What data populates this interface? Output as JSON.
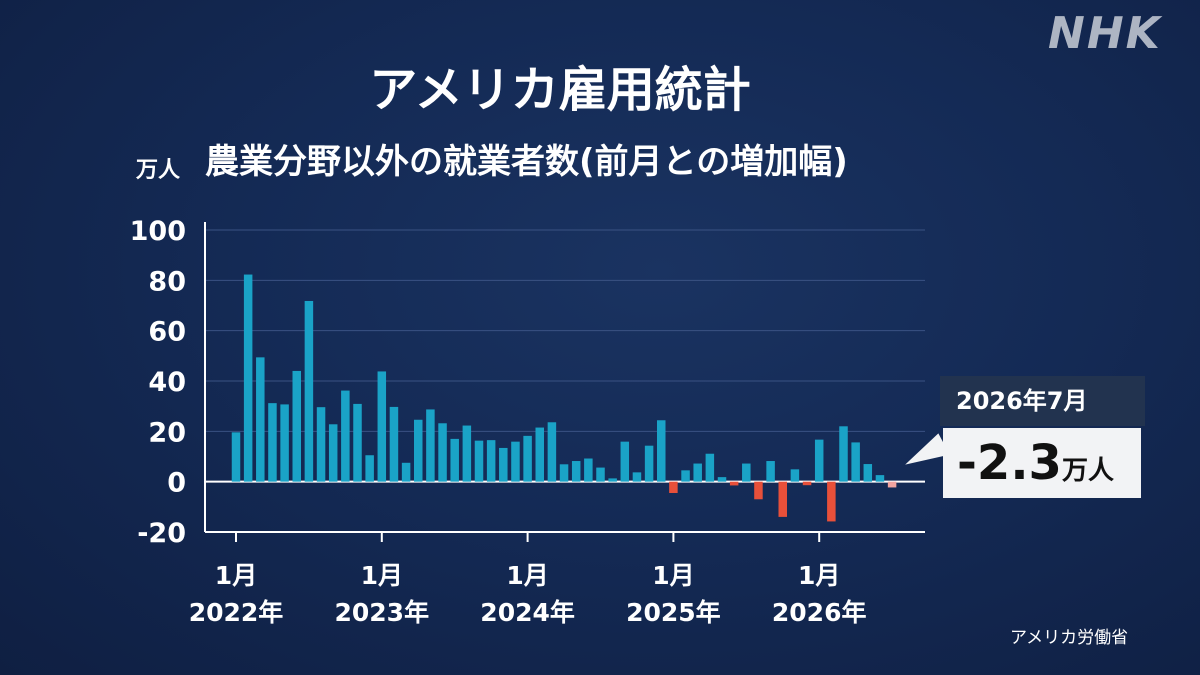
{
  "brand": {
    "logo_text": "NHK"
  },
  "header": {
    "title": "アメリカ雇用統計",
    "subtitle": "農業分野以外の就業者数(前月との増加幅)"
  },
  "source": "アメリカ労働省",
  "callout": {
    "period": "2026年7月",
    "value": "-2.3",
    "unit": "万人"
  },
  "colors": {
    "positive": "#1aa3c7",
    "negative": "#e8503a",
    "highlight": "#f2a4a0",
    "background": "#142a55"
  },
  "chart_data": {
    "type": "bar",
    "ylabel": "万人",
    "ylim": [
      -20,
      100
    ],
    "yticks": [
      -20,
      0,
      20,
      40,
      60,
      80,
      100
    ],
    "grid": true,
    "x_tick_labels": [
      {
        "index": 0,
        "month": "1月",
        "year": "2022年"
      },
      {
        "index": 12,
        "month": "1月",
        "year": "2023年"
      },
      {
        "index": 24,
        "month": "1月",
        "year": "2024年"
      },
      {
        "index": 36,
        "month": "1月",
        "year": "2025年"
      },
      {
        "index": 48,
        "month": "1月",
        "year": "2026年"
      }
    ],
    "start": "2022-01",
    "end": "2026-07",
    "values": [
      19.6,
      82.3,
      49.4,
      31.2,
      30.7,
      44.0,
      71.8,
      29.6,
      22.8,
      36.2,
      30.9,
      10.5,
      43.8,
      29.7,
      7.5,
      24.6,
      28.7,
      23.2,
      17.0,
      22.3,
      16.3,
      16.5,
      13.4,
      15.9,
      18.2,
      21.5,
      23.6,
      6.9,
      8.2,
      9.2,
      5.6,
      1.3,
      15.9,
      3.7,
      14.3,
      24.4,
      -4.5,
      4.5,
      7.2,
      11.1,
      1.8,
      -1.5,
      7.2,
      -7.0,
      8.2,
      -14.0,
      4.9,
      -1.4,
      16.7,
      -15.8,
      22.0,
      15.6,
      7.0,
      2.6,
      -2.3
    ]
  }
}
